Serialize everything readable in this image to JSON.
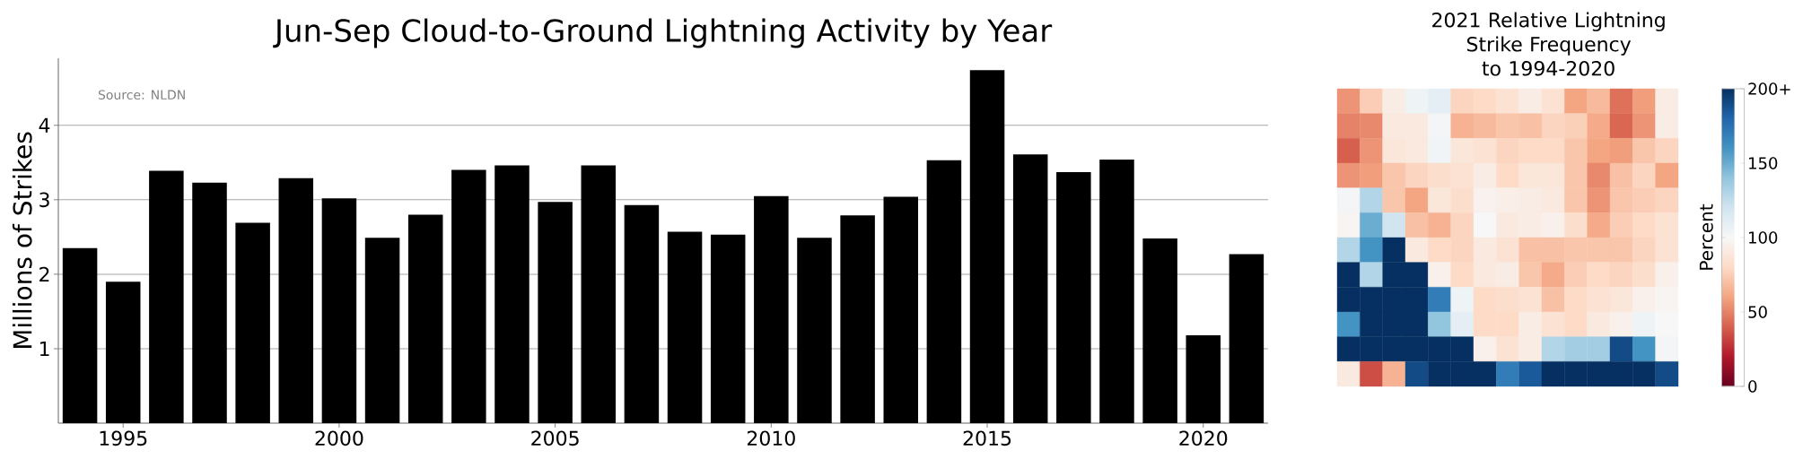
{
  "chart_data": [
    {
      "type": "bar",
      "title": "Jun-Sep Cloud-to-Ground Lightning Activity by Year",
      "ylabel": "Millions of Strikes",
      "x": [
        1994,
        1995,
        1996,
        1997,
        1998,
        1999,
        2000,
        2001,
        2002,
        2003,
        2004,
        2005,
        2006,
        2007,
        2008,
        2009,
        2010,
        2011,
        2012,
        2013,
        2014,
        2015,
        2016,
        2017,
        2018,
        2019,
        2020,
        2021
      ],
      "values": [
        2.35,
        1.9,
        3.39,
        3.23,
        2.69,
        3.29,
        3.02,
        2.49,
        2.8,
        3.4,
        3.46,
        2.97,
        3.46,
        2.93,
        2.57,
        2.53,
        3.05,
        2.49,
        2.79,
        3.04,
        3.53,
        4.74,
        3.61,
        3.37,
        3.54,
        2.48,
        1.18,
        2.27
      ],
      "color": "#000000",
      "xlim": [
        1993.5,
        2021.5
      ],
      "ylim": [
        0,
        4.9
      ],
      "xticks": [
        1995,
        2000,
        2005,
        2010,
        2015,
        2020
      ],
      "yticks": [
        1,
        2,
        3,
        4
      ],
      "grid": "y",
      "annotations": [
        "Source: NLDN"
      ]
    },
    {
      "type": "heatmap",
      "title": "2021 Relative Lightning Strike Frequency to 1994-2020",
      "clabel": "Percent",
      "categories": [
        null,
        null,
        null,
        null,
        null,
        null,
        null,
        null,
        null,
        null,
        null,
        null,
        null,
        null,
        null
      ],
      "y_categories": [
        null,
        null,
        null,
        null,
        null,
        null,
        null,
        null,
        null,
        null,
        null,
        null
      ],
      "cells": [
        [
          55,
          75,
          92,
          105,
          110,
          78,
          80,
          85,
          92,
          85,
          60,
          68,
          45,
          58,
          92
        ],
        [
          50,
          52,
          90,
          90,
          102,
          65,
          68,
          72,
          70,
          78,
          76,
          62,
          42,
          55,
          92
        ],
        [
          40,
          55,
          88,
          90,
          103,
          88,
          85,
          78,
          80,
          80,
          72,
          60,
          58,
          72,
          78
        ],
        [
          55,
          58,
          72,
          78,
          82,
          85,
          92,
          80,
          88,
          88,
          72,
          52,
          70,
          78,
          60
        ],
        [
          102,
          130,
          72,
          60,
          88,
          82,
          96,
          94,
          92,
          90,
          72,
          55,
          72,
          75,
          78
        ],
        [
          98,
          150,
          120,
          70,
          65,
          78,
          100,
          90,
          92,
          95,
          82,
          62,
          75,
          80,
          85
        ],
        [
          130,
          160,
          200,
          90,
          80,
          78,
          90,
          85,
          70,
          70,
          72,
          72,
          72,
          78,
          85
        ],
        [
          200,
          130,
          200,
          200,
          95,
          80,
          90,
          92,
          72,
          62,
          75,
          80,
          78,
          82,
          95
        ],
        [
          200,
          200,
          200,
          200,
          170,
          105,
          80,
          82,
          85,
          70,
          80,
          85,
          88,
          95,
          98
        ],
        [
          160,
          200,
          200,
          200,
          140,
          110,
          80,
          80,
          92,
          85,
          80,
          90,
          95,
          105,
          100
        ],
        [
          200,
          200,
          200,
          200,
          200,
          200,
          95,
          85,
          92,
          130,
          135,
          135,
          190,
          160,
          102
        ],
        [
          90,
          35,
          65,
          190,
          200,
          200,
          200,
          170,
          185,
          200,
          200,
          200,
          200,
          200,
          190
        ]
      ],
      "clim": [
        0,
        200
      ],
      "cticks": [
        0,
        50,
        100,
        150,
        {
          "value": 200,
          "label": "200+"
        }
      ]
    }
  ]
}
